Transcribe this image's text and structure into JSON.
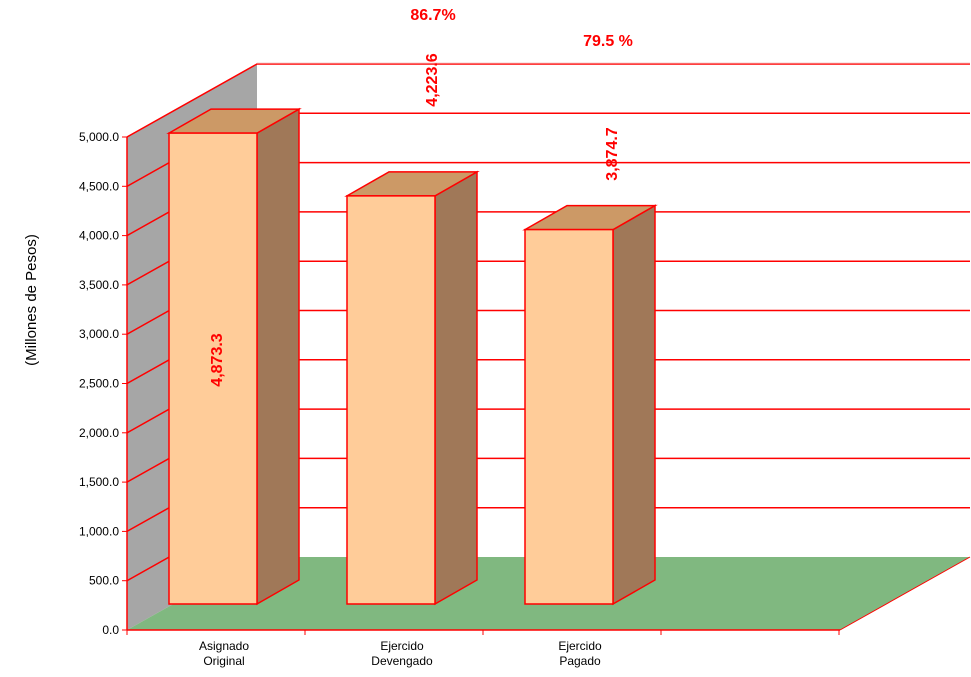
{
  "chart_data": {
    "type": "bar",
    "categories": [
      [
        "Asignado",
        "Original"
      ],
      [
        "Ejercido",
        "Devengado"
      ],
      [
        "Ejercido",
        "Pagado"
      ]
    ],
    "values": [
      4873.3,
      4223.6,
      3874.7
    ],
    "data_labels": [
      "4,873.3",
      "4,223.6",
      "3,874.7"
    ],
    "percent_labels": [
      "86.7%",
      "79.5 %"
    ],
    "ylabel": "(Millones de Pesos)",
    "ylim": [
      0,
      5000
    ],
    "yticks": [
      0,
      500,
      1000,
      1500,
      2000,
      2500,
      3000,
      3500,
      4000,
      4500,
      5000
    ],
    "ytick_labels": [
      "0.0",
      "500.0",
      "1,000.0",
      "1,500.0",
      "2,000.0",
      "2,500.0",
      "3,000.0",
      "3,500.0",
      "4,000.0",
      "4,500.0",
      "5,000.0"
    ],
    "grid": true,
    "style": "3d-bar",
    "colors": {
      "bar_front": "#ffcc99",
      "bar_top": "#cc9966",
      "bar_side": "#a07858",
      "bar_outline": "#ff0000",
      "back_wall": "#ffffff",
      "side_wall": "#a6a6a6",
      "floor": "#80b880",
      "gridline": "#ff0000",
      "label": "#ff0000"
    }
  }
}
